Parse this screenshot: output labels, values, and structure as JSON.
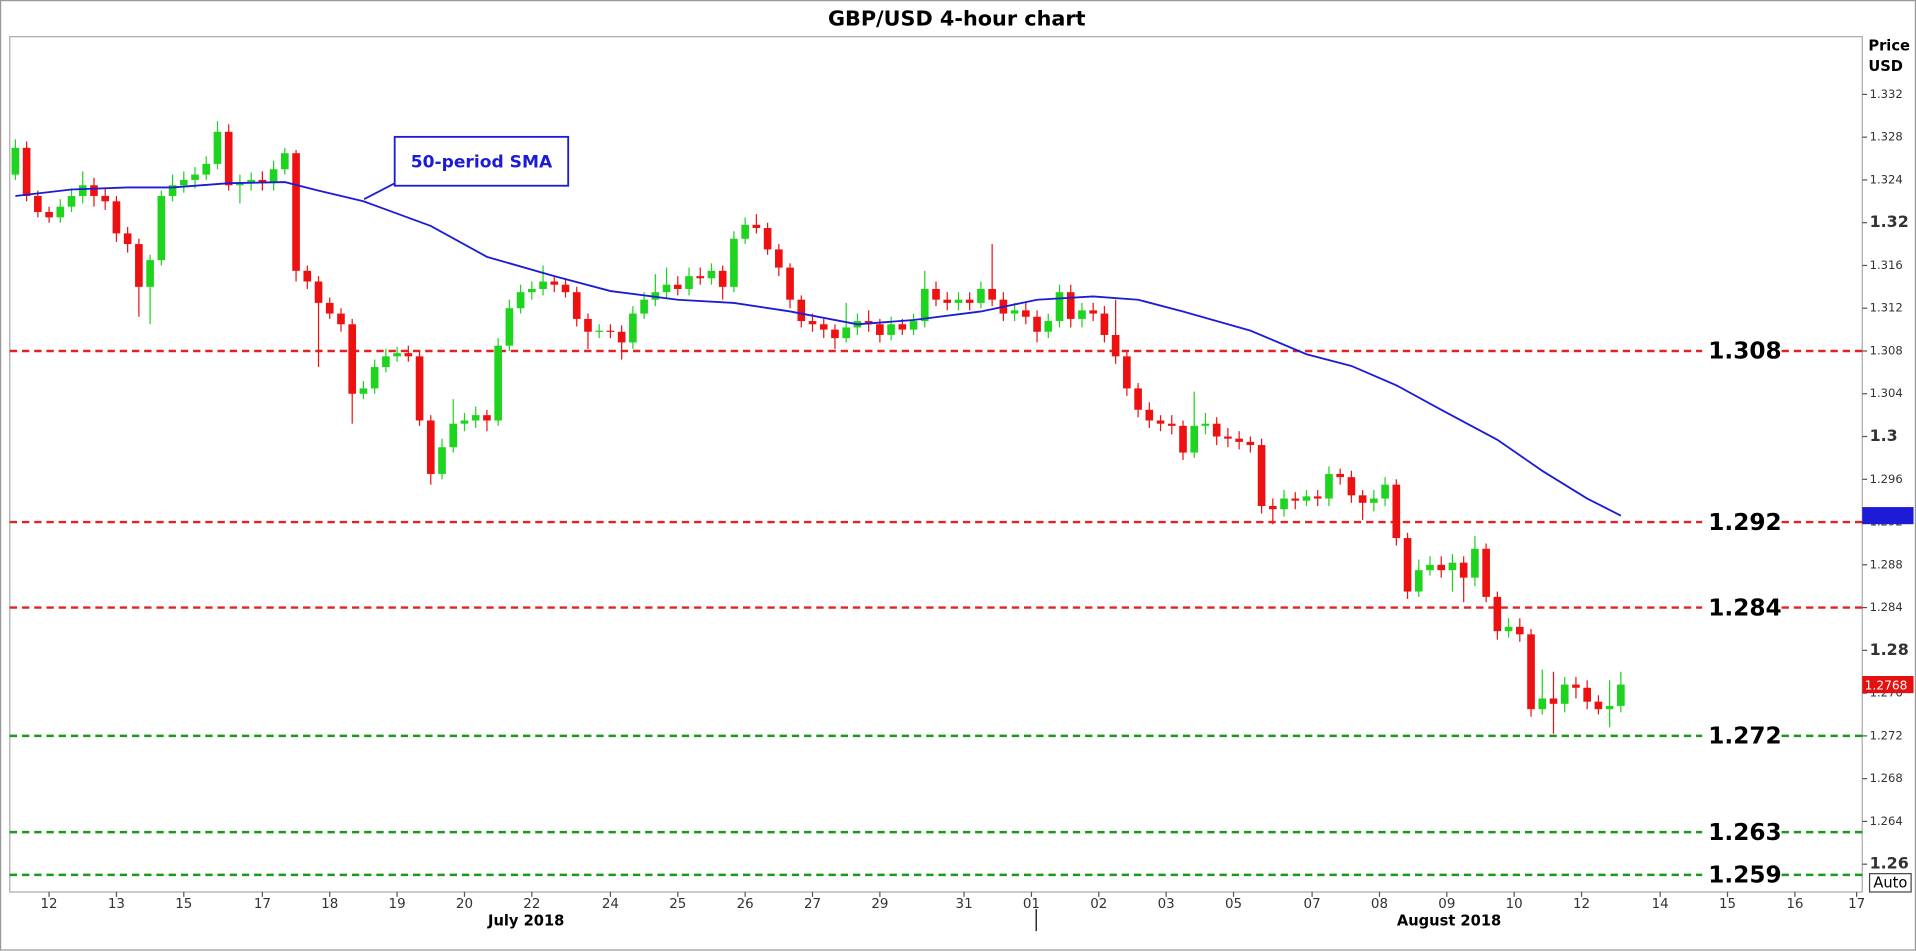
{
  "chart_data": {
    "type": "candlestick",
    "title": "GBP/USD 4-hour chart",
    "ylabel_lines": [
      "Price",
      "USD"
    ],
    "ylim": [
      1.2574,
      1.3374
    ],
    "yticks": [
      1.332,
      1.328,
      1.324,
      1.32,
      1.316,
      1.312,
      1.308,
      1.304,
      1.3,
      1.296,
      1.292,
      1.288,
      1.284,
      1.28,
      1.276,
      1.272,
      1.268,
      1.264,
      1.26
    ],
    "xlim": [
      -0.5,
      164.5
    ],
    "xticks": [
      {
        "value": 3,
        "label": "12"
      },
      {
        "value": 9,
        "label": "13"
      },
      {
        "value": 15,
        "label": "15"
      },
      {
        "value": 22,
        "label": "17"
      },
      {
        "value": 28,
        "label": "18"
      },
      {
        "value": 34,
        "label": "19"
      },
      {
        "value": 40,
        "label": "20"
      },
      {
        "value": 46,
        "label": "22"
      },
      {
        "value": 53,
        "label": "24"
      },
      {
        "value": 59,
        "label": "25"
      },
      {
        "value": 65,
        "label": "26"
      },
      {
        "value": 71,
        "label": "27"
      },
      {
        "value": 77,
        "label": "29"
      },
      {
        "value": 84.5,
        "label": "31"
      },
      {
        "value": 90.5,
        "label": "01"
      },
      {
        "value": 96.5,
        "label": "02"
      },
      {
        "value": 102.5,
        "label": "03"
      },
      {
        "value": 108.5,
        "label": "05"
      },
      {
        "value": 115.5,
        "label": "07"
      },
      {
        "value": 121.5,
        "label": "08"
      },
      {
        "value": 127.5,
        "label": "09"
      },
      {
        "value": 133.5,
        "label": "10"
      },
      {
        "value": 139.5,
        "label": "12"
      },
      {
        "value": 146.5,
        "label": "14"
      },
      {
        "value": 152.5,
        "label": "15"
      },
      {
        "value": 158.5,
        "label": "16"
      },
      {
        "value": 164,
        "label": "17"
      }
    ],
    "month_ticks": [
      {
        "value": 45.5,
        "label": "July 2018"
      },
      {
        "value": 127.7,
        "label": "August 2018"
      }
    ],
    "up_color": "#1ed41e",
    "down_color": "#ee1111",
    "open": [
      1.3245,
      1.327,
      1.3225,
      1.321,
      1.3205,
      1.3215,
      1.3225,
      1.3235,
      1.3225,
      1.322,
      1.319,
      1.318,
      1.314,
      1.3165,
      1.3225,
      1.3235,
      1.324,
      1.3245,
      1.3255,
      1.3285,
      1.3235,
      1.3238,
      1.324,
      1.3237,
      1.325,
      1.3265,
      1.3155,
      1.3145,
      1.3125,
      1.3115,
      1.3105,
      1.304,
      1.3045,
      1.3065,
      1.3075,
      1.3078,
      1.3075,
      1.3015,
      1.2965,
      1.299,
      1.3012,
      1.3015,
      1.302,
      1.3015,
      1.3085,
      1.312,
      1.3135,
      1.3138,
      1.3145,
      1.3142,
      1.3135,
      1.311,
      1.3098,
      1.3099,
      1.3098,
      1.3088,
      1.3115,
      1.3128,
      1.3135,
      1.3142,
      1.3138,
      1.315,
      1.3148,
      1.3155,
      1.314,
      1.3185,
      1.3198,
      1.3195,
      1.3175,
      1.3158,
      1.3128,
      1.3108,
      1.3105,
      1.31,
      1.3092,
      1.3102,
      1.3108,
      1.3105,
      1.3095,
      1.3105,
      1.31,
      1.3108,
      1.3138,
      1.3128,
      1.3125,
      1.3128,
      1.3125,
      1.3138,
      1.3128,
      1.3115,
      1.3118,
      1.3112,
      1.3098,
      1.3108,
      1.3135,
      1.311,
      1.3118,
      1.3115,
      1.3095,
      1.3075,
      1.3045,
      1.3025,
      1.3015,
      1.3012,
      1.301,
      1.2985,
      1.301,
      1.3012,
      1.3,
      1.2998,
      1.2995,
      1.2992,
      1.2935,
      1.2932,
      1.2942,
      1.294,
      1.2944,
      1.2942,
      1.2965,
      1.2962,
      1.2945,
      1.2938,
      1.2942,
      1.2955,
      1.2905,
      1.2855,
      1.2875,
      1.288,
      1.2875,
      1.2882,
      1.2868,
      1.2895,
      1.285,
      1.2818,
      1.2822,
      1.2815,
      1.2745,
      1.2755,
      1.275,
      1.2768,
      1.2765,
      1.2752,
      1.2745,
      1.2748
    ],
    "high": [
      1.3278,
      1.3276,
      1.323,
      1.3215,
      1.3222,
      1.3232,
      1.3248,
      1.3242,
      1.3232,
      1.3225,
      1.3196,
      1.3185,
      1.317,
      1.323,
      1.3245,
      1.3248,
      1.3252,
      1.3262,
      1.3295,
      1.3292,
      1.3245,
      1.3247,
      1.3248,
      1.3258,
      1.327,
      1.3268,
      1.316,
      1.315,
      1.313,
      1.312,
      1.311,
      1.3052,
      1.3072,
      1.3082,
      1.3084,
      1.3085,
      1.308,
      1.302,
      1.2998,
      1.3035,
      1.3022,
      1.3028,
      1.3025,
      1.3092,
      1.3128,
      1.3142,
      1.3145,
      1.316,
      1.315,
      1.3148,
      1.314,
      1.3115,
      1.3105,
      1.3105,
      1.3104,
      1.3122,
      1.3135,
      1.3152,
      1.3158,
      1.315,
      1.3158,
      1.3158,
      1.3162,
      1.316,
      1.3192,
      1.3205,
      1.3208,
      1.32,
      1.318,
      1.3162,
      1.3132,
      1.3115,
      1.311,
      1.3105,
      1.3125,
      1.3115,
      1.3118,
      1.311,
      1.3112,
      1.311,
      1.3115,
      1.3155,
      1.3145,
      1.3135,
      1.3135,
      1.3135,
      1.3145,
      1.318,
      1.3135,
      1.3125,
      1.3125,
      1.3118,
      1.3115,
      1.3142,
      1.3142,
      1.3125,
      1.3125,
      1.3122,
      1.3128,
      1.308,
      1.305,
      1.3032,
      1.302,
      1.302,
      1.3015,
      1.3042,
      1.3022,
      1.3018,
      1.3008,
      1.3005,
      1.3,
      1.2998,
      1.2942,
      1.295,
      1.2948,
      1.295,
      1.295,
      1.2972,
      1.297,
      1.2968,
      1.295,
      1.295,
      1.2962,
      1.296,
      1.291,
      1.2885,
      1.2888,
      1.2888,
      1.289,
      1.2888,
      1.2907,
      1.29,
      1.2855,
      1.283,
      1.283,
      1.282,
      1.2782,
      1.278,
      1.2775,
      1.2775,
      1.2772,
      1.2758,
      1.2772,
      1.278
    ],
    "low": [
      1.324,
      1.322,
      1.3205,
      1.32,
      1.32,
      1.321,
      1.3218,
      1.3215,
      1.3212,
      1.3182,
      1.3172,
      1.3112,
      1.3105,
      1.316,
      1.322,
      1.3228,
      1.3232,
      1.324,
      1.325,
      1.323,
      1.3218,
      1.323,
      1.323,
      1.323,
      1.3245,
      1.3145,
      1.3138,
      1.3065,
      1.311,
      1.3098,
      1.3012,
      1.3035,
      1.304,
      1.306,
      1.307,
      1.307,
      1.301,
      1.2955,
      1.296,
      1.2985,
      1.3005,
      1.3008,
      1.3005,
      1.301,
      1.308,
      1.3115,
      1.3128,
      1.3132,
      1.3135,
      1.313,
      1.3103,
      1.3082,
      1.3092,
      1.3092,
      1.3072,
      1.3082,
      1.311,
      1.3122,
      1.313,
      1.3132,
      1.3132,
      1.3142,
      1.3142,
      1.3128,
      1.3135,
      1.318,
      1.319,
      1.317,
      1.315,
      1.312,
      1.3102,
      1.3098,
      1.3092,
      1.3082,
      1.3088,
      1.3095,
      1.3098,
      1.3088,
      1.309,
      1.3095,
      1.3095,
      1.3102,
      1.3122,
      1.3118,
      1.3118,
      1.3118,
      1.312,
      1.3122,
      1.3108,
      1.3108,
      1.3105,
      1.3088,
      1.3092,
      1.3102,
      1.3102,
      1.3102,
      1.3108,
      1.3088,
      1.3068,
      1.3038,
      1.3018,
      1.3008,
      1.3005,
      1.3002,
      1.2978,
      1.298,
      1.3002,
      1.2992,
      1.299,
      1.2988,
      1.2985,
      1.2928,
      1.2918,
      1.2925,
      1.2932,
      1.2935,
      1.2935,
      1.2935,
      1.2955,
      1.2938,
      1.2922,
      1.293,
      1.2935,
      1.2898,
      1.2848,
      1.285,
      1.287,
      1.2868,
      1.2855,
      1.2845,
      1.286,
      1.2845,
      1.281,
      1.2812,
      1.2808,
      1.2738,
      1.274,
      1.2722,
      1.2742,
      1.2755,
      1.2745,
      1.274,
      1.2728,
      1.2742
    ],
    "close": [
      1.327,
      1.3225,
      1.321,
      1.3205,
      1.3215,
      1.3225,
      1.3235,
      1.3225,
      1.322,
      1.319,
      1.318,
      1.314,
      1.3165,
      1.3225,
      1.3235,
      1.324,
      1.3245,
      1.3255,
      1.3285,
      1.3235,
      1.3238,
      1.324,
      1.3237,
      1.325,
      1.3265,
      1.3155,
      1.3145,
      1.3125,
      1.3115,
      1.3105,
      1.304,
      1.3045,
      1.3065,
      1.3075,
      1.3078,
      1.3075,
      1.3015,
      1.2965,
      1.299,
      1.3012,
      1.3015,
      1.302,
      1.3015,
      1.3085,
      1.312,
      1.3135,
      1.3138,
      1.3145,
      1.3142,
      1.3135,
      1.311,
      1.3098,
      1.3099,
      1.3098,
      1.3088,
      1.3115,
      1.3128,
      1.3135,
      1.3142,
      1.3138,
      1.315,
      1.3148,
      1.3155,
      1.314,
      1.3185,
      1.3198,
      1.3195,
      1.3175,
      1.3158,
      1.3128,
      1.3108,
      1.3105,
      1.31,
      1.3092,
      1.3102,
      1.3108,
      1.3105,
      1.3095,
      1.3105,
      1.31,
      1.3108,
      1.3138,
      1.3128,
      1.3125,
      1.3128,
      1.3125,
      1.3138,
      1.3128,
      1.3115,
      1.3118,
      1.3112,
      1.3098,
      1.3108,
      1.3135,
      1.311,
      1.3118,
      1.3115,
      1.3095,
      1.3075,
      1.3045,
      1.3025,
      1.3015,
      1.3012,
      1.301,
      1.2985,
      1.301,
      1.3012,
      1.3,
      1.2998,
      1.2995,
      1.2992,
      1.2935,
      1.2932,
      1.2942,
      1.294,
      1.2944,
      1.2942,
      1.2965,
      1.2962,
      1.2945,
      1.2938,
      1.2942,
      1.2955,
      1.2905,
      1.2855,
      1.2875,
      1.288,
      1.2875,
      1.2882,
      1.2868,
      1.2895,
      1.285,
      1.2818,
      1.2822,
      1.2815,
      1.2745,
      1.2755,
      1.275,
      1.2768,
      1.2765,
      1.2752,
      1.2745,
      1.2748,
      1.2768
    ],
    "sma": {
      "color": "#1c1cd6",
      "x": [
        0,
        5,
        10,
        14,
        19,
        24,
        27,
        31,
        37,
        42,
        48,
        53,
        59,
        64,
        69,
        75,
        80,
        86,
        91,
        96,
        100,
        104,
        110,
        115,
        119,
        123,
        127,
        132,
        136,
        140,
        143
      ],
      "values": [
        1.3225,
        1.3231,
        1.3233,
        1.3233,
        1.3237,
        1.3238,
        1.323,
        1.322,
        1.3197,
        1.3168,
        1.315,
        1.3136,
        1.3128,
        1.3125,
        1.3117,
        1.3105,
        1.3109,
        1.3117,
        1.3128,
        1.3131,
        1.3128,
        1.3117,
        1.3099,
        1.3077,
        1.3066,
        1.3048,
        1.3025,
        1.2997,
        1.2968,
        1.2942,
        1.2926
      ]
    },
    "annotation": "50-period SMA",
    "levels": [
      {
        "value": 1.308,
        "color": "#e52222"
      },
      {
        "value": 1.292,
        "color": "#e52222"
      },
      {
        "value": 1.284,
        "color": "#e52222"
      },
      {
        "value": 1.272,
        "color": "#1a9a1a"
      },
      {
        "value": 1.263,
        "color": "#1a9a1a"
      },
      {
        "value": 1.259,
        "color": "#1a9a1a"
      }
    ],
    "auto_button": "Auto"
  }
}
